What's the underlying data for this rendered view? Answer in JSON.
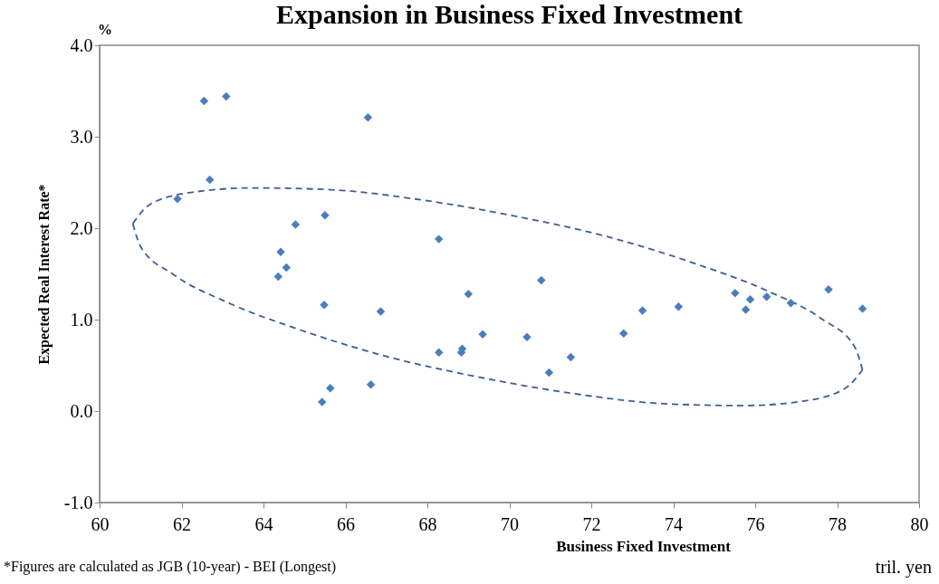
{
  "chart_data": {
    "type": "scatter",
    "title": "Expansion in Business Fixed Investment",
    "xlabel": "Business Fixed Investment",
    "ylabel": "Expected Real Interest Rate*",
    "annotations": [
      "%",
      "tril. yen",
      "*Figures are calculated as JGB (10-year) - BEI (Longest)"
    ],
    "series": [
      {
        "type": "line",
        "color": "#3d5f8f",
        "line_style": "dashed",
        "marker": "none",
        "x": [
          60.81,
          61.0,
          61.78,
          63.11,
          64.88,
          66.98,
          69.27,
          71.59,
          73.79,
          75.7,
          77.2,
          78.2,
          78.62
        ],
        "values": [
          2.05,
          1.8,
          1.5,
          1.19,
          0.89,
          0.6,
          0.37,
          0.19,
          0.08,
          0.06,
          0.11,
          0.25,
          0.45
        ]
      },
      {
        "type": "line",
        "color": "#3d5f8f",
        "line_style": "dashed",
        "marker": "none",
        "x": [
          60.81,
          61.23,
          62.23,
          63.73,
          65.65,
          67.84,
          70.16,
          72.45,
          74.55,
          76.32,
          77.65,
          78.43,
          78.62
        ],
        "values": [
          2.05,
          2.26,
          2.39,
          2.44,
          2.42,
          2.31,
          2.13,
          1.9,
          1.61,
          1.31,
          1.0,
          0.7,
          0.45
        ]
      },
      {
        "color": "#4a7ebb",
        "marker": "diamond",
        "x": [
          61.9,
          62.55,
          63.09,
          62.69,
          66.55,
          64.42,
          64.56,
          64.36,
          64.78,
          65.5,
          65.48,
          65.43,
          65.63,
          66.62,
          66.86,
          68.28,
          68.28,
          68.85,
          68.83,
          69.0,
          69.35,
          70.43,
          70.78,
          70.97,
          71.5,
          72.79,
          73.25,
          74.13,
          75.51,
          75.77,
          75.88,
          76.28,
          76.87,
          77.79,
          78.62
        ],
        "values": [
          2.32,
          3.39,
          3.44,
          2.53,
          3.21,
          1.74,
          1.57,
          1.47,
          2.04,
          2.14,
          1.16,
          0.1,
          0.25,
          0.29,
          1.09,
          1.88,
          0.64,
          0.68,
          0.64,
          1.28,
          0.84,
          0.81,
          1.43,
          0.42,
          0.59,
          0.85,
          1.1,
          1.14,
          1.29,
          1.11,
          1.22,
          1.25,
          1.18,
          1.33,
          1.12
        ]
      }
    ],
    "xlim": [
      60,
      80
    ],
    "xticks": [
      60,
      62,
      64,
      66,
      68,
      70,
      72,
      74,
      76,
      78,
      80
    ],
    "ylim": [
      -1,
      4
    ],
    "yticks": [
      {
        "value": -1,
        "label": "-1.0"
      },
      {
        "value": 0,
        "label": "0.0"
      },
      {
        "value": 1,
        "label": "1.0"
      },
      {
        "value": 2,
        "label": "2.0"
      },
      {
        "value": 3,
        "label": "3.0"
      },
      {
        "value": 4,
        "label": "4.0"
      }
    ],
    "grid": false
  }
}
